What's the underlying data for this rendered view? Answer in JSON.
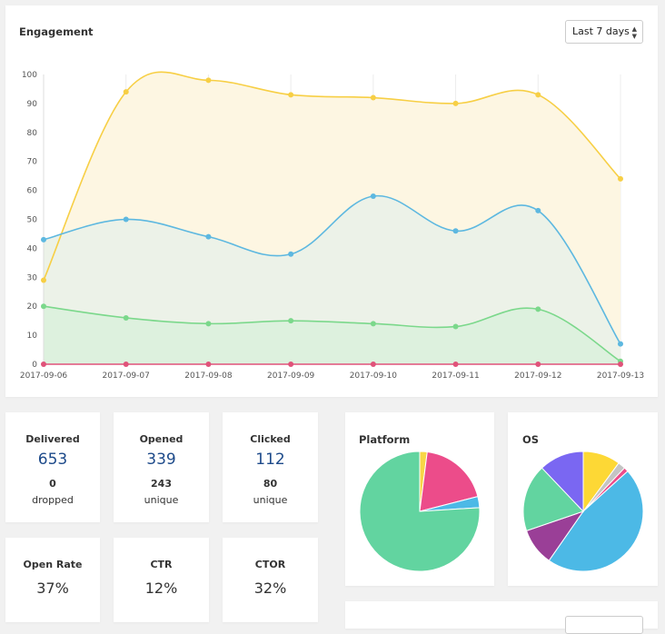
{
  "engagement": {
    "title": "Engagement",
    "range_select": "Last 7 days"
  },
  "chart_data": [
    {
      "type": "area",
      "x": [
        "2017-09-06",
        "2017-09-07",
        "2017-09-08",
        "2017-09-09",
        "2017-09-10",
        "2017-09-11",
        "2017-09-12",
        "2017-09-13"
      ],
      "ylim": [
        0,
        100
      ],
      "yticks": [
        0,
        10,
        20,
        30,
        40,
        50,
        60,
        70,
        80,
        90,
        100
      ],
      "grid": "vertical",
      "series": [
        {
          "values": [
            29,
            94,
            98,
            93,
            92,
            90,
            93,
            64
          ],
          "color": "#f7cf45",
          "fill": "#fdf6e2"
        },
        {
          "values": [
            43,
            50,
            44,
            38,
            58,
            46,
            53,
            7
          ],
          "color": "#5db8e0",
          "fill": "#ecf2e8"
        },
        {
          "values": [
            20,
            16,
            14,
            15,
            14,
            13,
            19,
            1
          ],
          "color": "#7bd88b",
          "fill": "#ddf1de"
        },
        {
          "values": [
            0,
            0,
            0,
            0,
            0,
            0,
            0,
            0
          ],
          "color": "#e0537a",
          "fill": "none"
        }
      ]
    },
    {
      "type": "pie",
      "title": "Platform",
      "slices": [
        {
          "value": 2,
          "color": "#f8d646"
        },
        {
          "value": 19,
          "color": "#ec4c8a"
        },
        {
          "value": 3,
          "color": "#4cb9e6"
        },
        {
          "value": 76,
          "color": "#62d4a0"
        }
      ]
    },
    {
      "type": "pie",
      "title": "OS",
      "slices": [
        {
          "value": 10,
          "color": "#fdd835"
        },
        {
          "value": 2,
          "color": "#c4c4c4"
        },
        {
          "value": 1.2,
          "color": "#ec4c8a"
        },
        {
          "value": 46,
          "color": "#4cb9e6"
        },
        {
          "value": 10,
          "color": "#9a3f97"
        },
        {
          "value": 18,
          "color": "#62d4a0"
        },
        {
          "value": 12,
          "color": "#7a67f2"
        }
      ]
    }
  ],
  "stats": {
    "delivered": {
      "label": "Delivered",
      "value": "653",
      "small": "0",
      "sub": "dropped"
    },
    "opened": {
      "label": "Opened",
      "value": "339",
      "small": "243",
      "sub": "unique"
    },
    "clicked": {
      "label": "Clicked",
      "value": "112",
      "small": "80",
      "sub": "unique"
    },
    "open_rate": {
      "label": "Open Rate",
      "value": "37%"
    },
    "ctr": {
      "label": "CTR",
      "value": "12%"
    },
    "ctor": {
      "label": "CTOR",
      "value": "32%"
    }
  }
}
